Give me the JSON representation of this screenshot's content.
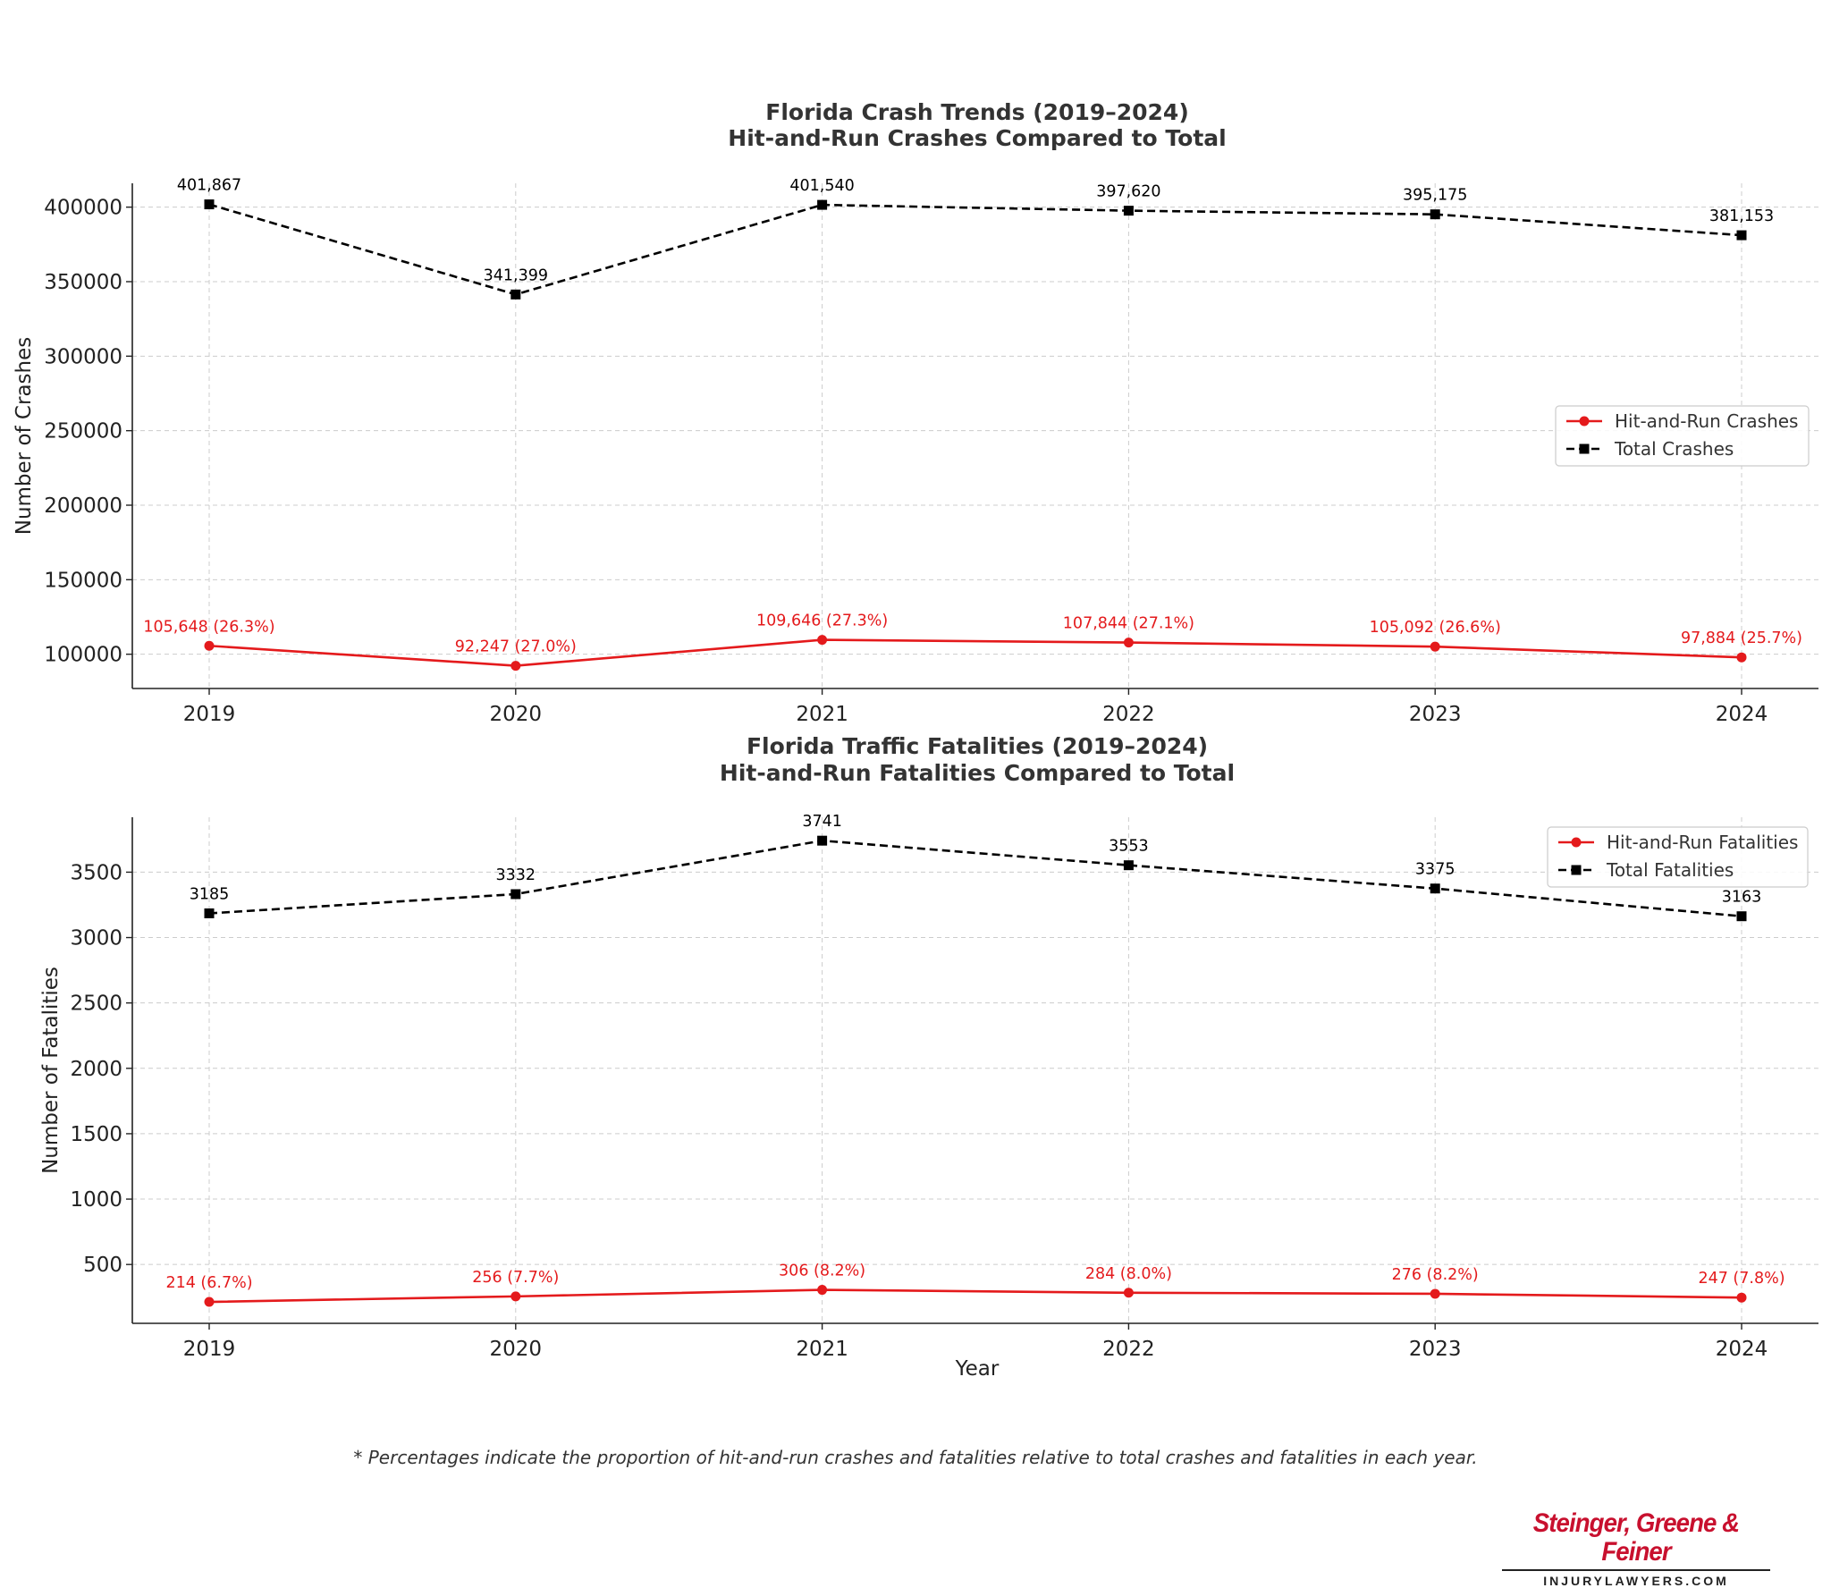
{
  "chart_data": [
    {
      "type": "line",
      "title": "Florida Crash Trends (2019–2024)",
      "subtitle": "Hit-and-Run Crashes Compared to Total",
      "xlabel": "",
      "ylabel": "Number of Crashes",
      "x": [
        2019,
        2020,
        2021,
        2022,
        2023,
        2024
      ],
      "ylim": [
        77000,
        416000
      ],
      "yticks": [
        100000,
        150000,
        200000,
        250000,
        300000,
        350000,
        400000
      ],
      "grid": true,
      "legend_position": "center-right",
      "series": [
        {
          "name": "Hit-and-Run Crashes",
          "color": "#e41a1c",
          "marker": "circle",
          "line_style": "solid",
          "values": [
            105648,
            92247,
            109646,
            107844,
            105092,
            97884
          ],
          "labels": [
            "105,648 (26.3%)",
            "92,247 (27.0%)",
            "109,646 (27.3%)",
            "107,844 (27.1%)",
            "105,092 (26.6%)",
            "97,884 (25.7%)"
          ]
        },
        {
          "name": "Total Crashes",
          "color": "#000000",
          "marker": "square",
          "line_style": "dashed",
          "values": [
            401867,
            341399,
            401540,
            397620,
            395175,
            381153
          ],
          "labels": [
            "401,867",
            "341,399",
            "401,540",
            "397,620",
            "395,175",
            "381,153"
          ]
        }
      ]
    },
    {
      "type": "line",
      "title": "Florida Traffic Fatalities (2019–2024)",
      "subtitle": "Hit-and-Run Fatalities Compared to Total",
      "xlabel": "Year",
      "ylabel": "Number of Fatalities",
      "x": [
        2019,
        2020,
        2021,
        2022,
        2023,
        2024
      ],
      "ylim": [
        50,
        3920
      ],
      "yticks": [
        500,
        1000,
        1500,
        2000,
        2500,
        3000,
        3500
      ],
      "grid": true,
      "legend_position": "top-right",
      "series": [
        {
          "name": "Hit-and-Run Fatalities",
          "color": "#e41a1c",
          "marker": "circle",
          "line_style": "solid",
          "values": [
            214,
            256,
            306,
            284,
            276,
            247
          ],
          "labels": [
            "214 (6.7%)",
            "256 (7.7%)",
            "306 (8.2%)",
            "284 (8.0%)",
            "276 (8.2%)",
            "247 (7.8%)"
          ]
        },
        {
          "name": "Total Fatalities",
          "color": "#000000",
          "marker": "square",
          "line_style": "dashed",
          "values": [
            3185,
            3332,
            3741,
            3553,
            3375,
            3163
          ],
          "labels": [
            "3185",
            "3332",
            "3741",
            "3553",
            "3375",
            "3163"
          ]
        }
      ]
    }
  ],
  "footnote": "* Percentages indicate the proportion of hit-and-run crashes and fatalities relative to total crashes and fatalities in each year.",
  "logo": {
    "name": "Steinger, Greene & Feiner",
    "sub": "INJURYLAWYERS.COM",
    "color": "#c8102e"
  }
}
